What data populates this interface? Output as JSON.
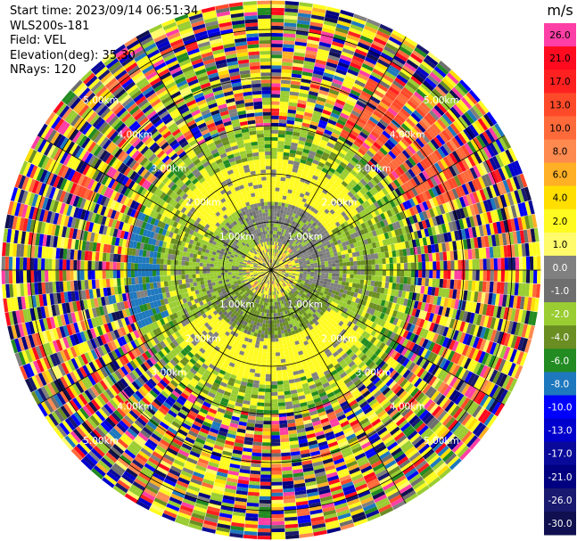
{
  "header": {
    "start_time": "Start time: 2023/09/14 06:51:34",
    "instrument": "WLS200s-181",
    "field": "Field: VEL",
    "elevation": "Elevation(deg): 35.30",
    "nrays": "NRays: 120"
  },
  "chart_data": {
    "type": "heatmap",
    "projection": "polar-ppi",
    "field": "VEL",
    "units": "m/s",
    "nrays": 120,
    "elevation_deg": 35.3,
    "range_rings_km": [
      1.0,
      2.0,
      3.0,
      4.0,
      5.0
    ],
    "ring_labels": [
      "1.00km",
      "2.00km",
      "3.00km",
      "4.00km",
      "5.00km"
    ],
    "max_range_km": 5.6,
    "gate_count": 75,
    "azimuth_gridlines_deg": [
      0,
      30,
      60,
      90,
      120,
      150,
      180,
      210,
      240,
      270,
      300,
      330
    ],
    "colorbar": {
      "title": "m/s",
      "tick_labels": [
        "26.0",
        "21.0",
        "17.0",
        "13.0",
        "10.0",
        "8.0",
        "6.0",
        "4.0",
        "2.0",
        "1.0",
        "0.0",
        "-1.0",
        "-2.0",
        "-4.0",
        "-6.0",
        "-8.0",
        "-10.0",
        "-13.0",
        "-17.0",
        "-21.0",
        "-26.0",
        "-30.0"
      ],
      "colors": [
        "#ff3fa5",
        "#ff0a1e",
        "#ff2020",
        "#ff4a2a",
        "#ff6a3a",
        "#ff8a50",
        "#ffb025",
        "#ffde00",
        "#fffb20",
        "#fffb6a",
        "#808080",
        "#6e6e6e",
        "#9acd32",
        "#6b8e23",
        "#228b22",
        "#1e78be",
        "#0000ff",
        "#0000cd",
        "#0a0a9a",
        "#000080",
        "#191970",
        "#101050"
      ]
    },
    "regions": [
      {
        "range_km": [
          0.0,
          0.6
        ],
        "pattern": "mixed yellow / gray core"
      },
      {
        "range_km": [
          0.6,
          1.4
        ],
        "pattern": "gray ring, olive green south and west"
      },
      {
        "range_km": [
          1.4,
          2.3
        ],
        "pattern": "yellow north and south, green east-west"
      },
      {
        "range_km": [
          2.3,
          3.0
        ],
        "pattern": "green / yellow ring, blue patch west"
      },
      {
        "range_km": [
          3.0,
          5.6
        ],
        "pattern": "noisy multicolor, orange-red patch north-east"
      }
    ]
  }
}
